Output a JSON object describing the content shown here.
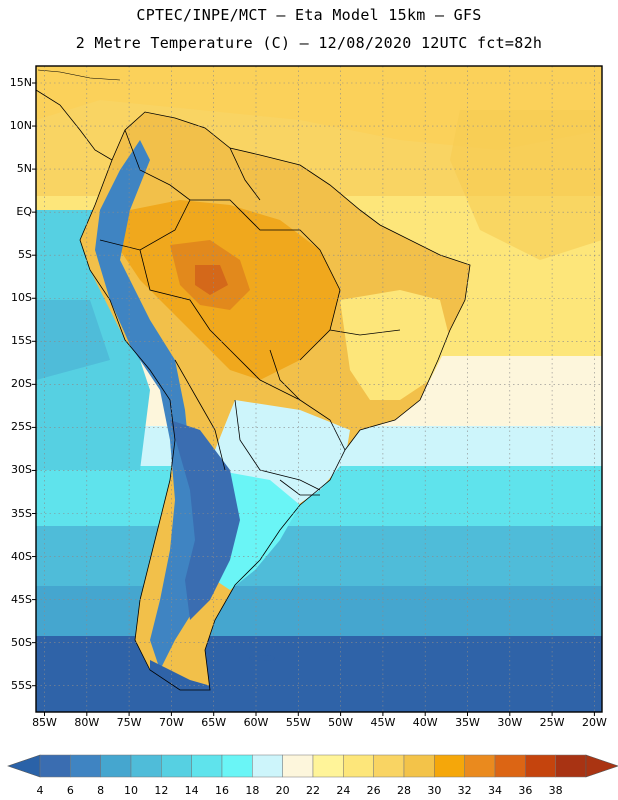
{
  "header": {
    "title_line1": "CPTEC/INPE/MCT –  Eta Model 15km – GFS",
    "title_line2": "2 Metre Temperature (C) – 12/08/2020 12UTC fct=82h"
  },
  "map": {
    "lat_labels": [
      "15N",
      "10N",
      "5N",
      "EQ",
      "5S",
      "10S",
      "15S",
      "20S",
      "25S",
      "30S",
      "35S",
      "40S",
      "45S",
      "50S",
      "55S"
    ],
    "lon_labels": [
      "85W",
      "80W",
      "75W",
      "70W",
      "65W",
      "60W",
      "55W",
      "50W",
      "45W",
      "40W",
      "35W",
      "30W",
      "25W",
      "20W"
    ]
  },
  "colorbar": {
    "labels": [
      "4",
      "6",
      "8",
      "10",
      "12",
      "14",
      "16",
      "18",
      "20",
      "22",
      "24",
      "26",
      "28",
      "30",
      "32",
      "34",
      "36",
      "38"
    ],
    "colors": [
      "#3a6db1",
      "#3f84c2",
      "#45a6cf",
      "#4fbcd9",
      "#56d0e2",
      "#5fe3ec",
      "#6af5f6",
      "#cdf5fb",
      "#fdf6dc",
      "#fff499",
      "#fde67a",
      "#f9d463",
      "#f3c349",
      "#f5a70a",
      "#ea8a1e",
      "#dc6514",
      "#c5440d",
      "#a83313"
    ],
    "low_color": "#2a62a8",
    "high_color": "#aa3412"
  }
}
